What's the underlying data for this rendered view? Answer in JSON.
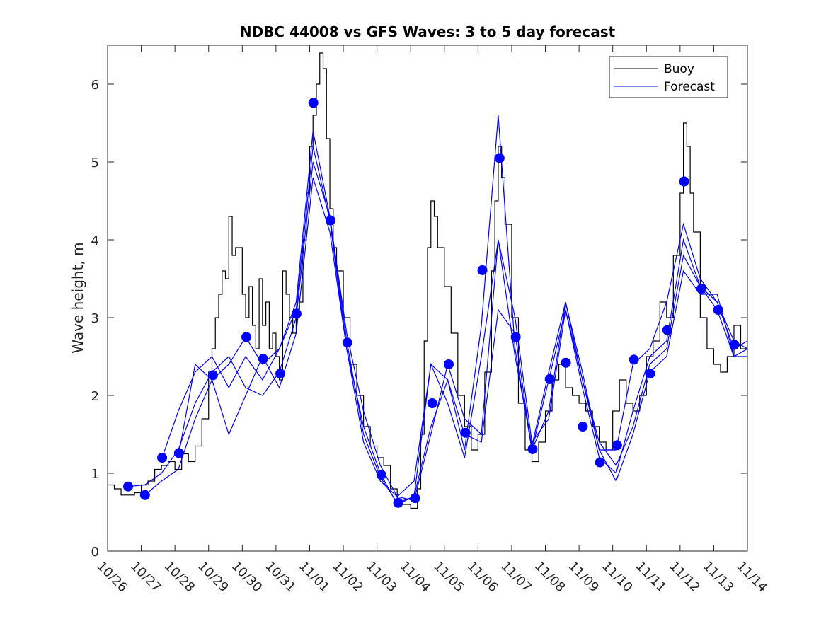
{
  "chart_data": {
    "type": "line",
    "title": "NDBC 44008 vs GFS Waves: 3 to 5 day forecast",
    "xlabel": "",
    "ylabel": "Wave height, m",
    "xlim_days": [
      0,
      19
    ],
    "ylim": [
      0,
      6.5
    ],
    "yticks": [
      0,
      1,
      2,
      3,
      4,
      5,
      6
    ],
    "xtick_labels": [
      "10/26",
      "10/27",
      "10/28",
      "10/29",
      "10/30",
      "10/31",
      "11/01",
      "11/02",
      "11/03",
      "11/04",
      "11/05",
      "11/06",
      "11/07",
      "11/08",
      "11/09",
      "11/10",
      "11/11",
      "11/12",
      "11/13",
      "11/14"
    ],
    "grid": false,
    "legend": {
      "placement": "top-right",
      "entries": [
        {
          "label": "Buoy",
          "color": "#000000"
        },
        {
          "label": "Forecast",
          "color": "#0000ff"
        }
      ]
    },
    "series": [
      {
        "name": "Buoy",
        "color": "#000000",
        "x_days": [
          0,
          0.2,
          0.4,
          0.6,
          0.8,
          1.0,
          1.2,
          1.4,
          1.6,
          1.8,
          2.0,
          2.2,
          2.4,
          2.6,
          2.8,
          3.0,
          3.1,
          3.2,
          3.3,
          3.4,
          3.5,
          3.6,
          3.7,
          3.8,
          4.0,
          4.1,
          4.2,
          4.3,
          4.4,
          4.5,
          4.6,
          4.7,
          4.8,
          4.9,
          5.0,
          5.1,
          5.2,
          5.3,
          5.4,
          5.5,
          5.6,
          5.7,
          5.8,
          5.9,
          6.0,
          6.1,
          6.2,
          6.3,
          6.4,
          6.5,
          6.6,
          6.7,
          6.8,
          7.0,
          7.2,
          7.4,
          7.6,
          7.8,
          8.0,
          8.2,
          8.4,
          8.6,
          8.8,
          9.0,
          9.1,
          9.2,
          9.3,
          9.4,
          9.5,
          9.6,
          9.7,
          9.8,
          10.0,
          10.2,
          10.4,
          10.6,
          10.8,
          11.0,
          11.2,
          11.4,
          11.5,
          11.6,
          11.7,
          11.8,
          12.0,
          12.2,
          12.4,
          12.6,
          12.8,
          13.0,
          13.2,
          13.4,
          13.6,
          13.8,
          14.0,
          14.2,
          14.4,
          14.6,
          14.8,
          15.0,
          15.2,
          15.4,
          15.6,
          15.8,
          16.0,
          16.2,
          16.4,
          16.6,
          16.8,
          17.0,
          17.1,
          17.2,
          17.3,
          17.4,
          17.6,
          17.8,
          18.0,
          18.2,
          18.4,
          18.6,
          18.8,
          19.0
        ],
        "values": [
          0.85,
          0.8,
          0.72,
          0.72,
          0.75,
          0.85,
          0.9,
          1.05,
          1.1,
          1.15,
          1.05,
          1.25,
          1.15,
          1.35,
          1.7,
          2.3,
          2.6,
          3.0,
          3.3,
          3.6,
          3.5,
          4.3,
          3.8,
          3.9,
          3.3,
          3.0,
          3.4,
          2.9,
          2.6,
          3.5,
          2.9,
          3.2,
          2.6,
          2.8,
          2.5,
          2.2,
          3.6,
          3.3,
          3.0,
          2.8,
          3.0,
          3.2,
          4.0,
          4.6,
          5.2,
          5.6,
          6.0,
          6.4,
          6.2,
          5.3,
          4.4,
          3.9,
          3.6,
          3.0,
          2.4,
          2.0,
          1.6,
          1.35,
          1.2,
          1.1,
          0.8,
          0.6,
          0.6,
          0.55,
          0.55,
          0.8,
          1.5,
          2.7,
          3.9,
          4.5,
          4.3,
          3.9,
          3.4,
          2.8,
          2.0,
          1.6,
          1.3,
          1.5,
          2.3,
          3.6,
          4.5,
          5.2,
          4.8,
          4.2,
          3.0,
          1.9,
          1.3,
          1.15,
          1.4,
          1.8,
          2.2,
          2.4,
          2.1,
          2.0,
          1.9,
          1.8,
          1.6,
          1.4,
          1.3,
          1.8,
          2.2,
          1.9,
          1.8,
          2.0,
          2.5,
          2.7,
          3.2,
          3.0,
          3.8,
          4.6,
          5.5,
          5.2,
          4.6,
          4.1,
          3.0,
          2.6,
          2.4,
          2.3,
          2.5,
          2.9,
          2.6,
          2.5
        ]
      },
      {
        "name": "Forecast",
        "color": "#0000ff",
        "markers_x_days": [
          0.61,
          1.11,
          1.62,
          2.12,
          3.13,
          4.12,
          4.62,
          5.13,
          5.61,
          6.11,
          6.62,
          7.12,
          8.13,
          8.63,
          9.13,
          9.64,
          10.13,
          10.63,
          11.13,
          11.64,
          12.12,
          12.62,
          13.13,
          13.61,
          14.11,
          14.62,
          15.13,
          15.63,
          16.11,
          16.62,
          17.12,
          17.63,
          18.13,
          18.61
        ],
        "markers_values": [
          0.83,
          0.72,
          1.2,
          1.26,
          2.26,
          2.75,
          2.47,
          2.28,
          3.05,
          5.76,
          4.25,
          2.68,
          0.98,
          0.62,
          0.68,
          1.9,
          2.4,
          1.52,
          3.61,
          5.05,
          2.75,
          1.31,
          2.21,
          2.42,
          1.6,
          1.14,
          1.36,
          2.46,
          2.28,
          2.84,
          4.75,
          3.37,
          3.1,
          2.65
        ],
        "runs": [
          {
            "x_days": [
              0.61,
              1.1,
              1.6,
              2.1,
              2.6,
              3.1,
              3.6,
              4.1,
              4.6,
              5.1,
              5.6,
              6.1,
              6.6,
              7.1,
              7.6,
              8.1,
              8.6,
              9.1,
              9.6,
              10.1,
              10.6,
              11.1,
              11.6,
              12.1,
              12.6,
              13.1,
              13.6,
              14.1,
              14.6,
              15.1,
              15.6,
              16.1,
              16.6,
              17.1,
              17.6,
              18.1,
              18.6,
              19.0
            ],
            "values": [
              0.83,
              0.85,
              1.0,
              1.3,
              1.9,
              2.3,
              2.5,
              2.1,
              2.0,
              2.3,
              3.0,
              5.0,
              4.3,
              2.8,
              1.8,
              1.1,
              0.7,
              0.65,
              1.5,
              2.4,
              1.7,
              1.5,
              4.0,
              3.0,
              1.4,
              1.7,
              3.1,
              2.2,
              1.4,
              1.1,
              1.6,
              2.4,
              2.6,
              3.8,
              3.4,
              3.2,
              2.7,
              2.6
            ]
          },
          {
            "x_days": [
              1.11,
              1.6,
              2.1,
              2.6,
              3.1,
              3.6,
              4.1,
              4.6,
              5.1,
              5.6,
              6.1,
              6.6,
              7.1,
              7.6,
              8.1,
              8.6,
              9.1,
              9.6,
              10.1,
              10.6,
              11.1,
              11.6,
              12.1,
              12.6,
              13.1,
              13.6,
              14.1,
              14.6,
              15.1,
              15.6,
              16.1,
              16.6,
              17.1,
              17.6,
              18.1,
              18.6,
              19.0
            ],
            "values": [
              0.72,
              0.9,
              1.05,
              1.7,
              2.2,
              1.5,
              2.0,
              2.5,
              2.1,
              2.8,
              4.8,
              4.1,
              2.6,
              1.6,
              1.0,
              0.6,
              0.7,
              1.6,
              2.2,
              1.5,
              1.4,
              3.1,
              2.8,
              1.3,
              1.8,
              3.2,
              2.3,
              1.3,
              0.9,
              1.5,
              2.3,
              2.5,
              3.6,
              3.3,
              3.3,
              2.5,
              2.5
            ]
          },
          {
            "x_days": [
              1.62,
              2.1,
              2.6,
              3.1,
              3.6,
              4.1,
              4.6,
              5.1,
              5.6,
              6.1,
              6.6,
              7.1,
              7.6,
              8.1,
              8.6,
              9.1,
              9.6,
              10.1,
              10.6,
              11.1,
              11.6,
              12.1,
              12.6,
              13.1,
              13.6,
              14.1,
              14.6,
              15.1,
              15.6,
              16.1,
              16.6,
              17.1,
              17.6,
              18.1,
              18.6,
              19.0
            ],
            "values": [
              1.2,
              1.8,
              2.3,
              2.5,
              2.1,
              2.5,
              2.2,
              2.6,
              3.2,
              5.4,
              4.3,
              2.7,
              1.5,
              0.95,
              0.62,
              0.7,
              2.4,
              2.2,
              1.3,
              2.9,
              5.6,
              2.6,
              1.3,
              2.2,
              3.1,
              2.1,
              1.2,
              1.0,
              1.8,
              2.5,
              2.7,
              4.0,
              3.4,
              3.1,
              2.5,
              2.6
            ]
          },
          {
            "x_days": [
              2.12,
              2.6,
              3.1,
              3.6,
              4.1,
              4.6,
              5.1,
              5.6,
              6.1,
              6.6,
              7.1,
              7.6,
              8.1,
              8.6,
              9.1,
              9.6,
              10.1,
              10.6,
              11.1,
              11.6,
              12.1,
              12.6,
              13.1,
              13.6,
              14.1,
              14.6,
              15.1,
              15.6,
              16.1,
              16.6,
              17.1,
              17.6,
              18.1,
              18.6,
              19.0
            ],
            "values": [
              1.26,
              2.4,
              2.2,
              2.4,
              2.75,
              2.4,
              2.6,
              3.1,
              5.2,
              4.25,
              2.6,
              1.4,
              0.9,
              0.7,
              0.9,
              2.4,
              1.9,
              1.2,
              2.5,
              4.0,
              2.5,
              1.35,
              2.3,
              3.2,
              2.2,
              1.3,
              1.3,
              2.4,
              2.6,
              3.2,
              4.2,
              3.5,
              3.2,
              2.6,
              2.7
            ]
          }
        ]
      }
    ]
  }
}
